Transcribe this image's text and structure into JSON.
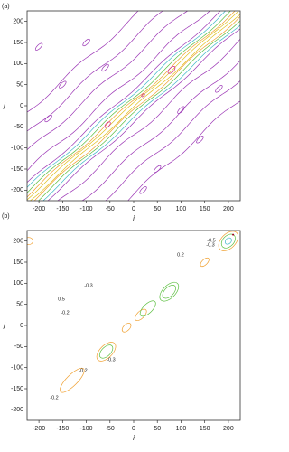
{
  "chart_data": [
    {
      "type": "contour",
      "label": "(a)",
      "x_label": "i",
      "y_label": "j",
      "xlim": [
        -225,
        225
      ],
      "ylim": [
        -225,
        225
      ],
      "xticks": [
        -200,
        -150,
        -100,
        -50,
        0,
        50,
        100,
        150,
        200
      ],
      "yticks": [
        -200,
        -150,
        -100,
        -50,
        0,
        50,
        100,
        150,
        200
      ]
    },
    {
      "type": "contour",
      "label": "(b)",
      "x_label": "i",
      "y_label": "j",
      "xlim": [
        -225,
        225
      ],
      "ylim": [
        -225,
        225
      ],
      "xticks": [
        -200,
        -150,
        -100,
        -50,
        0,
        50,
        100,
        150,
        200
      ],
      "yticks": [
        -200,
        -150,
        -100,
        -50,
        0,
        50,
        100,
        150,
        200
      ],
      "annotations": [
        "0.2",
        "-0.5",
        "-0.3",
        "-0.3",
        "0.5",
        "-0.2",
        "-0.3",
        "-0.2",
        "-0.2"
      ]
    }
  ]
}
